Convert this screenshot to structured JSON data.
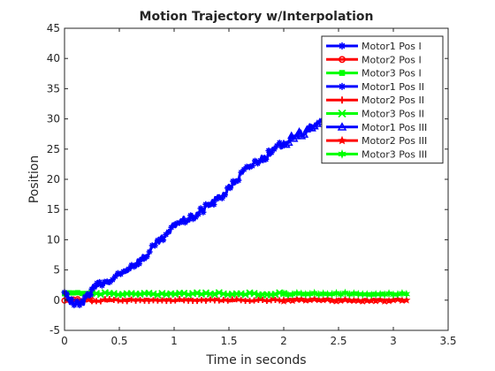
{
  "chart_data": {
    "type": "line",
    "title": "Motion  Trajectory w/Interpolation",
    "xlabel": "Time in seconds",
    "ylabel": "Position",
    "xlim": [
      0,
      3.5
    ],
    "ylim": [
      -5,
      45
    ],
    "xticks": [
      0,
      0.5,
      1,
      1.5,
      2,
      2.5,
      3,
      3.5
    ],
    "xtick_labels": [
      "0",
      "0.5",
      "1",
      "1.5",
      "2",
      "2.5",
      "3",
      "3.5"
    ],
    "yticks": [
      -5,
      0,
      5,
      10,
      15,
      20,
      25,
      30,
      35,
      40,
      45
    ],
    "ytick_labels": [
      "-5",
      "0",
      "5",
      "10",
      "15",
      "20",
      "25",
      "30",
      "35",
      "40",
      "45"
    ],
    "grid": false,
    "legend_position": "top-right",
    "series": [
      {
        "name": "Motor1 Pos I",
        "color": "#0000ff",
        "marker": "asterisk",
        "x": [
          0,
          0.02,
          0.05,
          0.1,
          0.15,
          0.2,
          0.25
        ],
        "y": [
          1.5,
          0.5,
          -0.3,
          -0.8,
          -0.6,
          0.3,
          1.5
        ]
      },
      {
        "name": "Motor2 Pos I",
        "color": "#ff0000",
        "marker": "circle",
        "x": [
          0,
          0.1,
          0.2,
          0.25
        ],
        "y": [
          0.1,
          0,
          0,
          0
        ]
      },
      {
        "name": "Motor3 Pos I",
        "color": "#00ff00",
        "marker": "square",
        "x": [
          0,
          0.1,
          0.2,
          0.25
        ],
        "y": [
          1,
          1.1,
          1,
          1.1
        ]
      },
      {
        "name": "Motor1 Pos II",
        "color": "#0000ff",
        "marker": "asterisk",
        "x": [
          0.25,
          0.4,
          0.5,
          0.6,
          0.75,
          0.85,
          0.95,
          1.0,
          1.05,
          1.15,
          1.3,
          1.45,
          1.55,
          1.65,
          1.75,
          1.85,
          2.0
        ],
        "y": [
          2,
          3,
          4,
          5.5,
          7.5,
          9.5,
          11,
          12.5,
          13,
          13.5,
          15.5,
          17.5,
          19.5,
          21.5,
          23,
          24,
          26
        ]
      },
      {
        "name": "Motor2 Pos II",
        "color": "#ff0000",
        "marker": "plus",
        "x": [
          0.25,
          0.75,
          1.25,
          1.75,
          2.0
        ],
        "y": [
          0,
          0,
          0,
          0,
          0
        ]
      },
      {
        "name": "Motor3 Pos II",
        "color": "#00ff00",
        "marker": "x",
        "x": [
          0.25,
          0.75,
          1.25,
          1.75,
          2.0
        ],
        "y": [
          1.1,
          1,
          1.1,
          1,
          1.1
        ]
      },
      {
        "name": "Motor1 Pos III",
        "color": "#0000ff",
        "marker": "triangle",
        "x": [
          2.0,
          2.2,
          2.4,
          2.55,
          2.7,
          2.85,
          2.9,
          3.0,
          3.1,
          3.15
        ],
        "y": [
          26,
          28,
          30,
          31.5,
          33,
          35,
          37,
          39,
          42,
          43.5
        ]
      },
      {
        "name": "Motor2 Pos III",
        "color": "#ff0000",
        "marker": "star",
        "x": [
          2.0,
          2.5,
          3.0,
          3.12
        ],
        "y": [
          0,
          0,
          0,
          0
        ]
      },
      {
        "name": "Motor3 Pos III",
        "color": "#00ff00",
        "marker": "hexagram",
        "x": [
          2.0,
          2.5,
          3.0,
          3.12
        ],
        "y": [
          1,
          1.1,
          1,
          1
        ]
      }
    ]
  }
}
